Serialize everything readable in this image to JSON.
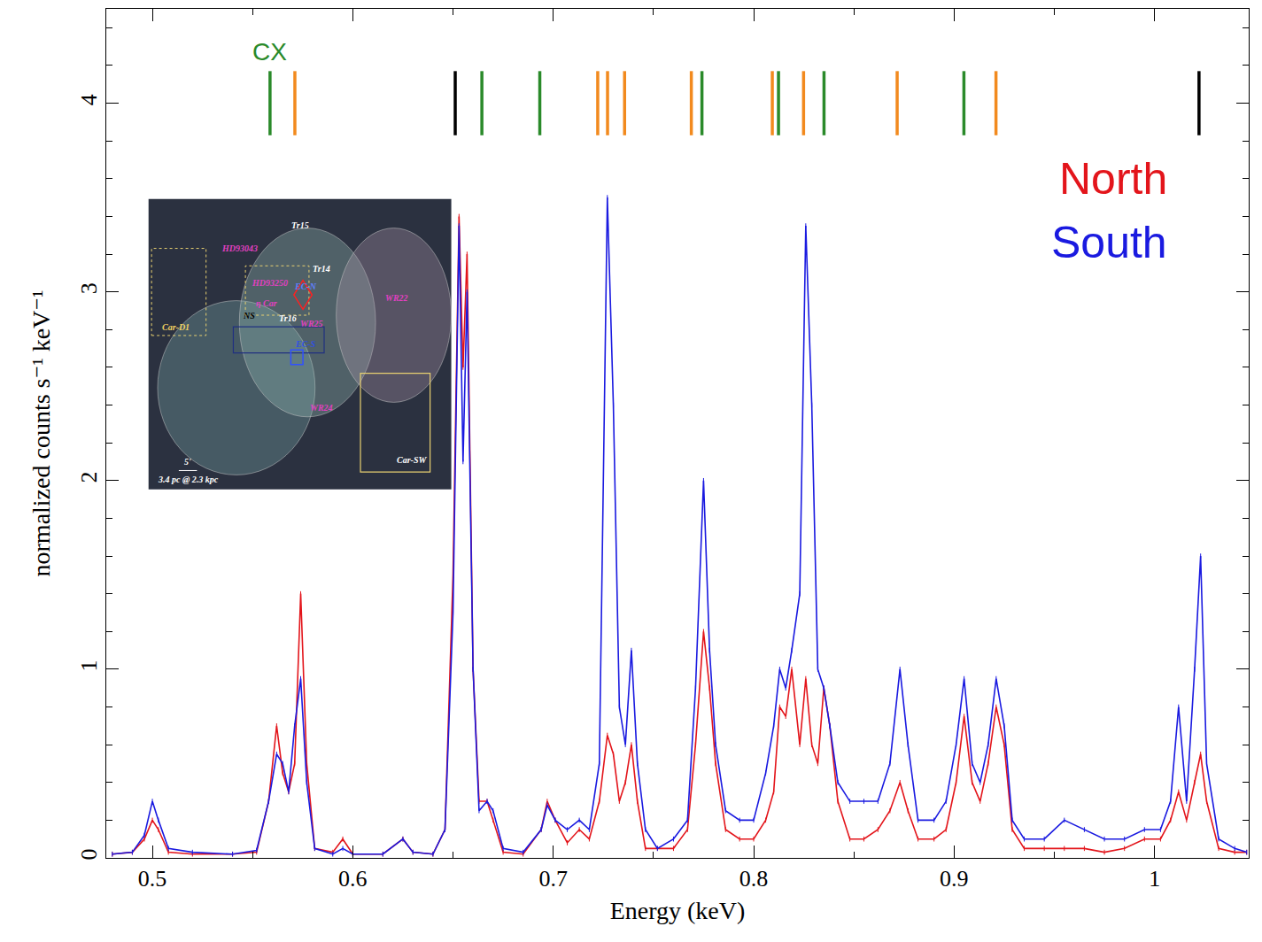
{
  "chart_data": {
    "type": "line",
    "x_label": "Energy (keV)",
    "y_label": "normalized counts s⁻¹ keV⁻¹",
    "xlim": [
      0.477,
      1.047
    ],
    "ylim": [
      0,
      4.5
    ],
    "xticks": [
      0.5,
      0.6,
      0.7,
      0.8,
      0.9,
      1
    ],
    "yticks": [
      0,
      1,
      2,
      3,
      4
    ],
    "grid": false,
    "legend": "top right",
    "line_style": "solid",
    "x": [
      0.48,
      0.49,
      0.496,
      0.5,
      0.503,
      0.508,
      0.52,
      0.54,
      0.552,
      0.558,
      0.562,
      0.565,
      0.568,
      0.571,
      0.574,
      0.577,
      0.581,
      0.59,
      0.595,
      0.6,
      0.615,
      0.625,
      0.63,
      0.64,
      0.646,
      0.65,
      0.653,
      0.655,
      0.657,
      0.66,
      0.663,
      0.667,
      0.67,
      0.675,
      0.685,
      0.694,
      0.697,
      0.701,
      0.707,
      0.713,
      0.718,
      0.723,
      0.727,
      0.73,
      0.733,
      0.736,
      0.739,
      0.742,
      0.746,
      0.752,
      0.76,
      0.767,
      0.771,
      0.775,
      0.778,
      0.781,
      0.786,
      0.793,
      0.8,
      0.806,
      0.81,
      0.813,
      0.816,
      0.819,
      0.823,
      0.826,
      0.829,
      0.832,
      0.835,
      0.838,
      0.842,
      0.848,
      0.855,
      0.862,
      0.868,
      0.873,
      0.877,
      0.882,
      0.89,
      0.896,
      0.901,
      0.905,
      0.909,
      0.913,
      0.917,
      0.921,
      0.925,
      0.929,
      0.935,
      0.945,
      0.955,
      0.965,
      0.975,
      0.985,
      0.995,
      1.003,
      1.008,
      1.012,
      1.016,
      1.02,
      1.023,
      1.026,
      1.032,
      1.04,
      1.046
    ],
    "series": [
      {
        "name": "North",
        "color": "#e3151b",
        "values": [
          0.02,
          0.03,
          0.1,
          0.2,
          0.15,
          0.03,
          0.02,
          0.02,
          0.03,
          0.3,
          0.7,
          0.45,
          0.35,
          0.5,
          1.4,
          0.5,
          0.05,
          0.03,
          0.1,
          0.02,
          0.02,
          0.1,
          0.03,
          0.02,
          0.15,
          1.5,
          3.4,
          2.6,
          3.2,
          1.0,
          0.3,
          0.3,
          0.2,
          0.03,
          0.02,
          0.15,
          0.3,
          0.2,
          0.08,
          0.15,
          0.1,
          0.3,
          0.65,
          0.55,
          0.3,
          0.4,
          0.6,
          0.3,
          0.05,
          0.05,
          0.05,
          0.15,
          0.6,
          1.2,
          0.9,
          0.5,
          0.15,
          0.1,
          0.1,
          0.2,
          0.35,
          0.8,
          0.75,
          1.0,
          0.6,
          0.95,
          0.6,
          0.5,
          0.9,
          0.7,
          0.3,
          0.1,
          0.1,
          0.15,
          0.25,
          0.4,
          0.25,
          0.1,
          0.1,
          0.15,
          0.4,
          0.75,
          0.4,
          0.3,
          0.5,
          0.8,
          0.6,
          0.15,
          0.05,
          0.05,
          0.05,
          0.05,
          0.03,
          0.05,
          0.1,
          0.1,
          0.2,
          0.35,
          0.2,
          0.4,
          0.55,
          0.3,
          0.05,
          0.03,
          0.03
        ]
      },
      {
        "name": "South",
        "color": "#1a1ae0",
        "values": [
          0.02,
          0.03,
          0.12,
          0.3,
          0.2,
          0.05,
          0.03,
          0.02,
          0.04,
          0.3,
          0.55,
          0.5,
          0.35,
          0.7,
          0.95,
          0.4,
          0.05,
          0.02,
          0.05,
          0.02,
          0.02,
          0.1,
          0.03,
          0.02,
          0.15,
          1.3,
          3.35,
          2.1,
          3.0,
          1.0,
          0.25,
          0.3,
          0.25,
          0.05,
          0.03,
          0.15,
          0.28,
          0.2,
          0.15,
          0.2,
          0.15,
          0.5,
          3.5,
          2.4,
          0.8,
          0.6,
          1.1,
          0.5,
          0.15,
          0.05,
          0.1,
          0.2,
          0.9,
          2.0,
          1.1,
          0.6,
          0.25,
          0.2,
          0.2,
          0.45,
          0.7,
          1.0,
          0.9,
          1.1,
          1.4,
          3.35,
          2.4,
          1.0,
          0.9,
          0.7,
          0.4,
          0.3,
          0.3,
          0.3,
          0.5,
          1.0,
          0.6,
          0.2,
          0.2,
          0.3,
          0.6,
          0.95,
          0.5,
          0.4,
          0.6,
          0.95,
          0.7,
          0.2,
          0.1,
          0.1,
          0.2,
          0.15,
          0.1,
          0.1,
          0.15,
          0.15,
          0.3,
          0.8,
          0.3,
          1.0,
          1.6,
          0.5,
          0.1,
          0.05,
          0.03
        ]
      }
    ],
    "line_markers": [
      {
        "name": "CX",
        "color": "#2a8a2a",
        "energies": [
          0.5587,
          0.6644,
          0.6933,
          0.7742,
          0.8124,
          0.8351,
          0.9049
        ]
      },
      {
        "color": "#f28a1e",
        "energies": [
          0.5711,
          0.7222,
          0.7271,
          0.7356,
          0.7689,
          0.8093,
          0.8249,
          0.8716,
          0.9209
        ]
      },
      {
        "color": "#000000",
        "energies": [
          0.6511,
          1.0222
        ]
      }
    ],
    "line_marker_y": [
      3.83,
      4.17
    ],
    "inset": {
      "labels": [
        {
          "text": "Tr15",
          "color": "#ffffff"
        },
        {
          "text": "HD93043",
          "color": "#e040c0"
        },
        {
          "text": "Tr14",
          "color": "#ffffff"
        },
        {
          "text": "Car-D1",
          "color": "#f0d060"
        },
        {
          "text": "HD93250",
          "color": "#e040c0"
        },
        {
          "text": "η Car",
          "color": "#e040c0"
        },
        {
          "text": "EC-N",
          "color": "#6080ff"
        },
        {
          "text": "NS",
          "color": "#000000"
        },
        {
          "text": "Tr16",
          "color": "#ffffff"
        },
        {
          "text": "WR25",
          "color": "#e040c0"
        },
        {
          "text": "WR22",
          "color": "#e040c0"
        },
        {
          "text": "EC-S",
          "color": "#3050e0"
        },
        {
          "text": "WR24",
          "color": "#e040c0"
        },
        {
          "text": "Car-SW",
          "color": "#ffffff"
        },
        {
          "text": "5'",
          "color": "#ffffff"
        },
        {
          "text": "3.4 pc @ 2.3 kpc",
          "color": "#ffffff"
        }
      ]
    }
  }
}
